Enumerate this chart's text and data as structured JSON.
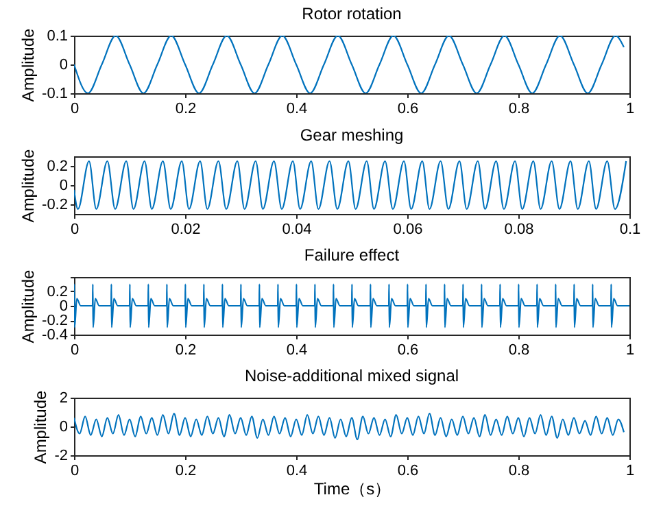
{
  "chart_data": [
    {
      "type": "line",
      "title": "Rotor rotation",
      "ylabel": "Amplitude",
      "xlim": [
        0,
        1
      ],
      "ylim": [
        -0.1,
        0.1
      ],
      "xticks": [
        0,
        0.2,
        0.4,
        0.6,
        0.8,
        1
      ],
      "yticks": [
        -0.1,
        0,
        0.1
      ],
      "x": [
        0,
        0.025,
        0.05,
        0.075,
        0.1,
        0.125,
        0.15,
        0.175,
        0.2,
        0.225,
        0.25,
        0.275,
        0.3,
        0.325,
        0.35,
        0.375,
        0.4,
        0.425,
        0.45,
        0.475,
        0.5,
        0.525,
        0.55,
        0.575,
        0.6,
        0.625,
        0.65,
        0.675,
        0.7,
        0.725,
        0.75,
        0.775,
        0.8,
        0.825,
        0.85,
        0.875,
        0.9,
        0.925,
        0.95,
        0.975,
        0.99
      ],
      "series": [
        {
          "color": "#0072bd",
          "values": [
            0,
            -0.1,
            0,
            0.1,
            0,
            -0.1,
            0,
            0.1,
            0,
            -0.1,
            0,
            0.1,
            0,
            -0.1,
            0,
            0.1,
            0,
            -0.1,
            0,
            0.1,
            0,
            -0.1,
            0,
            0.1,
            0,
            -0.1,
            0,
            0.1,
            0,
            -0.1,
            0,
            0.1,
            0,
            -0.1,
            0,
            0.1,
            0,
            -0.1,
            0,
            0.1,
            0.06
          ]
        }
      ]
    },
    {
      "type": "line",
      "title": "Gear meshing",
      "ylabel": "Amplitude",
      "xlim": [
        0,
        0.1
      ],
      "ylim": [
        -0.3,
        0.3
      ],
      "xticks": [
        0,
        0.02,
        0.04,
        0.06,
        0.08,
        0.1
      ],
      "yticks": [
        -0.2,
        0,
        0.2
      ],
      "x": [
        0,
        0.0007,
        0.0027,
        0.004,
        0.006,
        0.0074,
        0.0094,
        0.0107,
        0.0127,
        0.014,
        0.016,
        0.0174,
        0.0194,
        0.0207,
        0.0227,
        0.024,
        0.026,
        0.0274,
        0.0294,
        0.0307,
        0.0327,
        0.034,
        0.036,
        0.0374,
        0.0394,
        0.0407,
        0.0427,
        0.044,
        0.046,
        0.0474,
        0.0494,
        0.0507,
        0.0527,
        0.054,
        0.056,
        0.0574,
        0.0594,
        0.0607,
        0.0627,
        0.064,
        0.066,
        0.0674,
        0.0694,
        0.0707,
        0.0727,
        0.074,
        0.076,
        0.0774,
        0.0794,
        0.0807,
        0.0827,
        0.084,
        0.086,
        0.0874,
        0.0894,
        0.0907,
        0.0927,
        0.094,
        0.096,
        0.0974,
        0.0994
      ],
      "series": [
        {
          "color": "#0072bd",
          "values": [
            -0.05,
            -0.25,
            0.25,
            -0.25,
            0.25,
            -0.25,
            0.25,
            -0.25,
            0.25,
            -0.25,
            0.25,
            -0.25,
            0.25,
            -0.25,
            0.25,
            -0.25,
            0.25,
            -0.25,
            0.25,
            -0.25,
            0.25,
            -0.25,
            0.25,
            -0.25,
            0.25,
            -0.25,
            0.25,
            -0.25,
            0.25,
            -0.25,
            0.25,
            -0.25,
            0.25,
            -0.25,
            0.25,
            -0.25,
            0.25,
            -0.25,
            0.25,
            -0.25,
            0.25,
            -0.25,
            0.25,
            -0.25,
            0.25,
            -0.25,
            0.25,
            -0.25,
            0.25,
            -0.25,
            0.25,
            -0.25,
            0.25,
            -0.25,
            0.25,
            -0.25,
            0.25,
            -0.25,
            0.25,
            -0.25,
            0.25
          ]
        }
      ]
    },
    {
      "type": "line",
      "title": "Failure effect",
      "ylabel": "Amplitude",
      "xlim": [
        0,
        1
      ],
      "ylim": [
        -0.4,
        0.4
      ],
      "xticks": [
        0,
        0.2,
        0.4,
        0.6,
        0.8,
        1
      ],
      "yticks": [
        -0.4,
        -0.2,
        0,
        0.2,
        {
          "value": 0.4,
          "label": null
        }
      ],
      "x": [
        0,
        0.0005,
        0.001,
        0.005,
        0.012,
        0.0333,
        0.0338,
        0.0343,
        0.0383,
        0.0453,
        0.0667,
        0.0672,
        0.0677,
        0.0717,
        0.0787,
        0.1,
        0.1005,
        0.101,
        0.105,
        0.112,
        0.1333,
        0.1338,
        0.1343,
        0.1383,
        0.1453,
        0.1667,
        0.1672,
        0.1677,
        0.1717,
        0.1787,
        0.2,
        0.2005,
        0.201,
        0.205,
        0.212,
        0.2333,
        0.2338,
        0.2343,
        0.2383,
        0.2453,
        0.2667,
        0.2672,
        0.2677,
        0.2717,
        0.2787,
        0.3,
        0.3005,
        0.301,
        0.305,
        0.312,
        0.3333,
        0.3338,
        0.3343,
        0.3383,
        0.3453,
        0.3667,
        0.3672,
        0.3677,
        0.3717,
        0.3787,
        0.4,
        0.4005,
        0.401,
        0.405,
        0.412,
        0.4333,
        0.4338,
        0.4343,
        0.4383,
        0.4453,
        0.4667,
        0.4672,
        0.4677,
        0.4717,
        0.4787,
        0.5,
        0.5005,
        0.501,
        0.505,
        0.512,
        0.5333,
        0.5338,
        0.5343,
        0.5383,
        0.5453,
        0.5667,
        0.5672,
        0.5677,
        0.5717,
        0.5787,
        0.6,
        0.6005,
        0.601,
        0.605,
        0.612,
        0.6333,
        0.6338,
        0.6343,
        0.6383,
        0.6453,
        0.6667,
        0.6672,
        0.6677,
        0.6717,
        0.6787,
        0.7,
        0.7005,
        0.701,
        0.705,
        0.712,
        0.7333,
        0.7338,
        0.7343,
        0.7383,
        0.7453,
        0.7667,
        0.7672,
        0.7677,
        0.7717,
        0.7787,
        0.8,
        0.8005,
        0.801,
        0.805,
        0.812,
        0.8333,
        0.8338,
        0.8343,
        0.8383,
        0.8453,
        0.8667,
        0.8672,
        0.8677,
        0.8717,
        0.8787,
        0.9,
        0.9005,
        0.901,
        0.905,
        0.912,
        0.9333,
        0.9338,
        0.9343,
        0.9383,
        0.9453,
        0.9667,
        0.9672,
        0.9677,
        0.9717,
        0.9787,
        1
      ],
      "series": [
        {
          "color": "#0072bd",
          "values": [
            0,
            0.3,
            -0.3,
            0.1,
            0,
            0,
            0.3,
            -0.3,
            0.1,
            0,
            0,
            0.3,
            -0.3,
            0.1,
            0,
            0,
            0.3,
            -0.3,
            0.1,
            0,
            0,
            0.3,
            -0.3,
            0.1,
            0,
            0,
            0.3,
            -0.3,
            0.1,
            0,
            0,
            0.3,
            -0.3,
            0.1,
            0,
            0,
            0.3,
            -0.3,
            0.1,
            0,
            0,
            0.3,
            -0.3,
            0.1,
            0,
            0,
            0.3,
            -0.3,
            0.1,
            0,
            0,
            0.3,
            -0.3,
            0.1,
            0,
            0,
            0.3,
            -0.3,
            0.1,
            0,
            0,
            0.3,
            -0.3,
            0.1,
            0,
            0,
            0.3,
            -0.3,
            0.1,
            0,
            0,
            0.3,
            -0.3,
            0.1,
            0,
            0,
            0.3,
            -0.3,
            0.1,
            0,
            0,
            0.3,
            -0.3,
            0.1,
            0,
            0,
            0.3,
            -0.3,
            0.1,
            0,
            0,
            0.3,
            -0.3,
            0.1,
            0,
            0,
            0.3,
            -0.3,
            0.1,
            0,
            0,
            0.3,
            -0.3,
            0.1,
            0,
            0,
            0.3,
            -0.3,
            0.1,
            0,
            0,
            0.3,
            -0.3,
            0.1,
            0,
            0,
            0.3,
            -0.3,
            0.1,
            0,
            0,
            0.3,
            -0.3,
            0.1,
            0,
            0,
            0.3,
            -0.3,
            0.1,
            0,
            0,
            0.3,
            -0.3,
            0.1,
            0,
            0,
            0.3,
            -0.3,
            0.1,
            0,
            0,
            0.3,
            -0.3,
            0.1,
            0,
            0,
            0.3,
            -0.3,
            0.1,
            0,
            0
          ]
        }
      ]
    },
    {
      "type": "line",
      "title": "Noise-additional mixed signal",
      "xlabel": "Time（s）",
      "ylabel": "Amplitude",
      "xlim": [
        0,
        1
      ],
      "ylim": [
        -2,
        2
      ],
      "xticks": [
        0,
        0.2,
        0.4,
        0.6,
        0.8,
        1
      ],
      "yticks": [
        -2,
        0,
        2
      ],
      "x": [
        0,
        0.01,
        0.02,
        0.03,
        0.04,
        0.05,
        0.06,
        0.07,
        0.08,
        0.09,
        0.1,
        0.11,
        0.12,
        0.13,
        0.14,
        0.15,
        0.16,
        0.17,
        0.18,
        0.19,
        0.2,
        0.21,
        0.22,
        0.23,
        0.24,
        0.25,
        0.26,
        0.27,
        0.28,
        0.29,
        0.3,
        0.31,
        0.32,
        0.33,
        0.34,
        0.35,
        0.36,
        0.37,
        0.38,
        0.39,
        0.4,
        0.41,
        0.42,
        0.43,
        0.44,
        0.45,
        0.46,
        0.47,
        0.48,
        0.49,
        0.5,
        0.51,
        0.52,
        0.53,
        0.54,
        0.55,
        0.56,
        0.57,
        0.58,
        0.59,
        0.6,
        0.61,
        0.62,
        0.63,
        0.64,
        0.65,
        0.66,
        0.67,
        0.68,
        0.69,
        0.7,
        0.71,
        0.72,
        0.73,
        0.74,
        0.75,
        0.76,
        0.77,
        0.78,
        0.79,
        0.8,
        0.81,
        0.82,
        0.83,
        0.84,
        0.85,
        0.86,
        0.87,
        0.88,
        0.89,
        0.9,
        0.91,
        0.92,
        0.93,
        0.94,
        0.95,
        0.96,
        0.97,
        0.98,
        0.99
      ],
      "series": [
        {
          "color": "#0072bd",
          "values": [
            0.6,
            -0.5,
            0.7,
            -0.6,
            0.5,
            -0.7,
            0.6,
            -0.5,
            0.8,
            -0.6,
            0.5,
            -0.7,
            0.7,
            -0.5,
            0.6,
            -0.6,
            0.8,
            -0.5,
            0.9,
            -0.6,
            0.6,
            -0.7,
            0.5,
            -0.6,
            0.7,
            -0.5,
            0.6,
            -0.7,
            0.8,
            -0.5,
            0.6,
            -0.6,
            0.7,
            -0.8,
            0.5,
            -0.6,
            0.7,
            -0.5,
            0.6,
            -0.7,
            0.5,
            -0.6,
            0.8,
            -0.5,
            0.7,
            -0.6,
            0.6,
            -0.8,
            0.5,
            -0.7,
            0.6,
            -0.9,
            0.7,
            -0.5,
            0.6,
            -0.6,
            0.5,
            -0.7,
            0.8,
            -0.5,
            0.6,
            -0.6,
            0.7,
            -0.5,
            0.9,
            -0.6,
            0.6,
            -0.7,
            0.5,
            -0.6,
            0.7,
            -0.5,
            0.6,
            -0.7,
            0.8,
            -0.6,
            0.5,
            -0.6,
            0.7,
            -0.5,
            0.6,
            -0.7,
            0.6,
            -0.5,
            0.8,
            -0.6,
            0.7,
            -0.8,
            0.5,
            -0.6,
            0.6,
            -0.5,
            0.4,
            -0.6,
            0.7,
            -0.5,
            0.6,
            -0.6,
            0.5,
            -0.4
          ]
        }
      ]
    }
  ]
}
